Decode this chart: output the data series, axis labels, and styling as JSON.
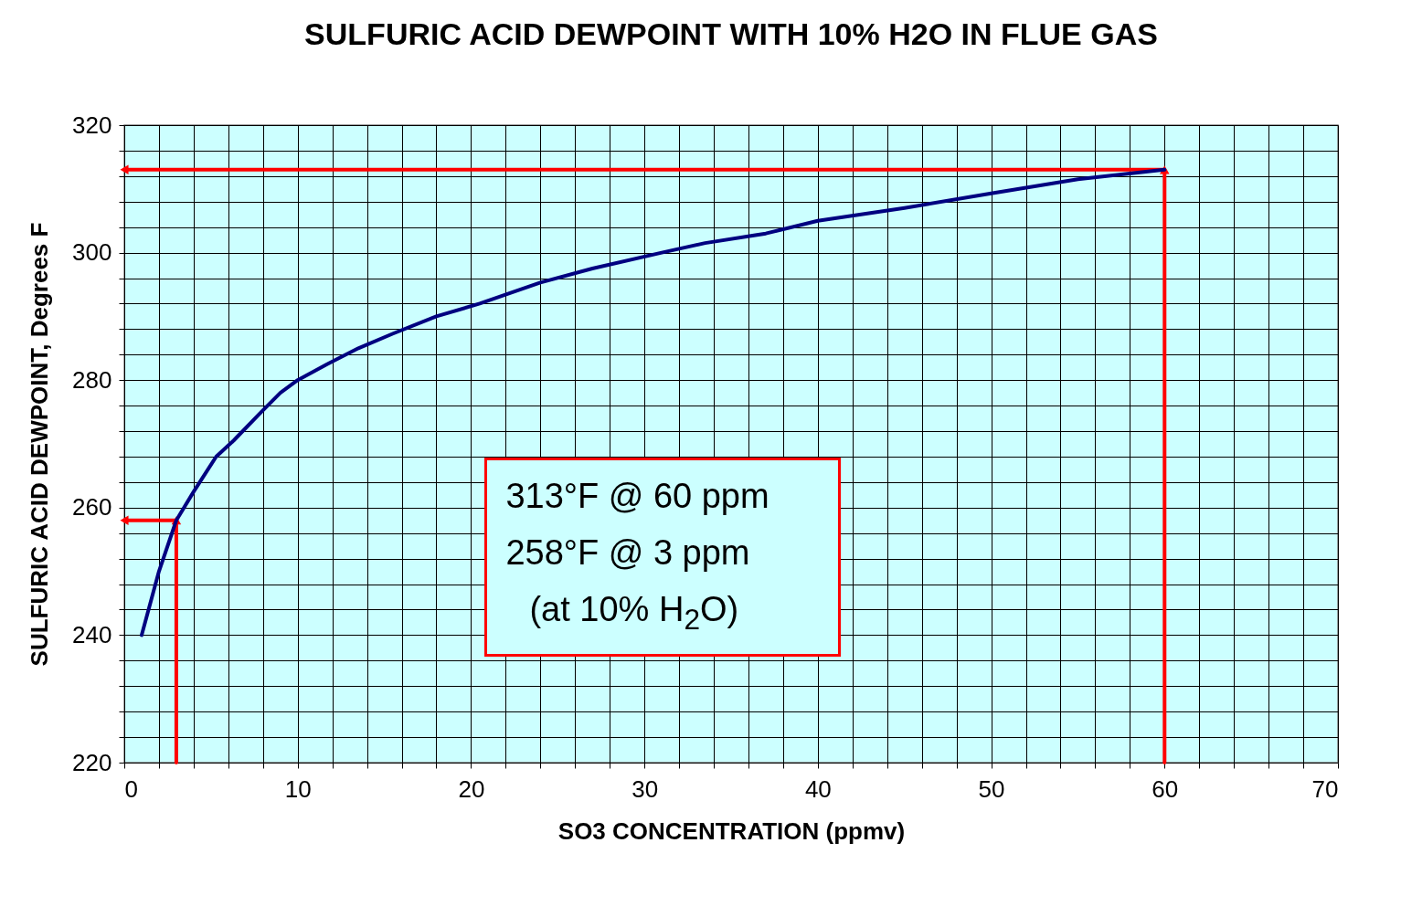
{
  "chart_data": {
    "type": "line",
    "title": "SULFURIC ACID DEWPOINT WITH 10% H2O IN FLUE GAS",
    "xlabel": "SO3 CONCENTRATION (ppmv)",
    "ylabel": "SULFURIC ACID DEWPOINT, Degrees F",
    "x": [
      1,
      1.5,
      2,
      3,
      4,
      5.3,
      6.3,
      7.9,
      9,
      10,
      11.7,
      13.5,
      15.5,
      18,
      20.5,
      24,
      27,
      31,
      33.5,
      37,
      40,
      45,
      50,
      55,
      60
    ],
    "series": [
      {
        "color": "#000080",
        "values": [
          240,
          245,
          250,
          258,
          262.5,
          268,
          270.5,
          275,
          278,
          280,
          282.5,
          285,
          287.3,
          290,
          292,
          295.3,
          297.5,
          300,
          301.5,
          303,
          305,
          307,
          309.3,
          311.5,
          313
        ]
      },
      {
        "color": "#ff0000",
        "x": [
          3,
          3,
          0
        ],
        "values": [
          220,
          258,
          258
        ]
      },
      {
        "color": "#ff0000",
        "x": [
          60,
          60,
          0
        ],
        "values": [
          220,
          313,
          313
        ]
      }
    ],
    "xlim": [
      0,
      70
    ],
    "ylim": [
      220,
      320
    ],
    "xticks": [
      0,
      {
        "value": 2,
        "label": null
      },
      {
        "value": 4,
        "label": null
      },
      {
        "value": 6,
        "label": null
      },
      {
        "value": 8,
        "label": null
      },
      10,
      {
        "value": 12,
        "label": null
      },
      {
        "value": 14,
        "label": null
      },
      {
        "value": 16,
        "label": null
      },
      {
        "value": 18,
        "label": null
      },
      20,
      {
        "value": 22,
        "label": null
      },
      {
        "value": 24,
        "label": null
      },
      {
        "value": 26,
        "label": null
      },
      {
        "value": 28,
        "label": null
      },
      30,
      {
        "value": 32,
        "label": null
      },
      {
        "value": 34,
        "label": null
      },
      {
        "value": 36,
        "label": null
      },
      {
        "value": 38,
        "label": null
      },
      40,
      {
        "value": 42,
        "label": null
      },
      {
        "value": 44,
        "label": null
      },
      {
        "value": 46,
        "label": null
      },
      {
        "value": 48,
        "label": null
      },
      50,
      {
        "value": 52,
        "label": null
      },
      {
        "value": 54,
        "label": null
      },
      {
        "value": 56,
        "label": null
      },
      {
        "value": 58,
        "label": null
      },
      60,
      {
        "value": 62,
        "label": null
      },
      {
        "value": 64,
        "label": null
      },
      {
        "value": 66,
        "label": null
      },
      {
        "value": 68,
        "label": null
      },
      70
    ],
    "yticks": [
      220,
      {
        "value": 224,
        "label": null
      },
      {
        "value": 228,
        "label": null
      },
      {
        "value": 232,
        "label": null
      },
      {
        "value": 236,
        "label": null
      },
      240,
      {
        "value": 244,
        "label": null
      },
      {
        "value": 248,
        "label": null
      },
      {
        "value": 252,
        "label": null
      },
      {
        "value": 256,
        "label": null
      },
      260,
      {
        "value": 264,
        "label": null
      },
      {
        "value": 268,
        "label": null
      },
      {
        "value": 272,
        "label": null
      },
      {
        "value": 276,
        "label": null
      },
      280,
      {
        "value": 284,
        "label": null
      },
      {
        "value": 288,
        "label": null
      },
      {
        "value": 292,
        "label": null
      },
      {
        "value": 296,
        "label": null
      },
      300,
      {
        "value": 304,
        "label": null
      },
      {
        "value": 308,
        "label": null
      },
      {
        "value": 312,
        "label": null
      },
      {
        "value": 316,
        "label": null
      },
      320
    ],
    "grid": true,
    "annotations": [
      "313°F @ 60 ppm",
      "258°F @ 3 ppm",
      "(at 10% H$_{2}$O)"
    ]
  }
}
